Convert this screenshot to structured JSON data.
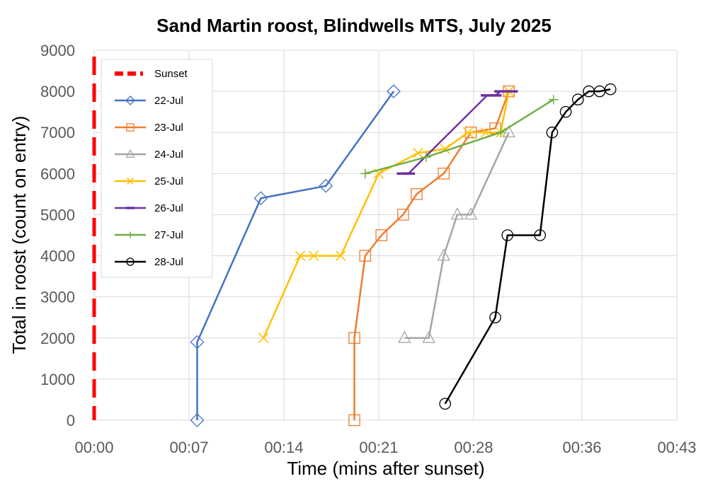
{
  "chart_data": {
    "type": "line",
    "title": "Sand Martin roost, Blindwells MTS, July 2025",
    "xlabel": "Time (mins after sunset)",
    "ylabel": "Total in roost (count on entry)",
    "xlim": [
      0,
      43
    ],
    "ylim": [
      0,
      9000
    ],
    "x_ticks": [
      0,
      7,
      14,
      21,
      28,
      36,
      43
    ],
    "x_tick_labels": [
      "00:00",
      "00:07",
      "00:14",
      "00:21",
      "00:28",
      "00:36",
      "00:43"
    ],
    "y_ticks": [
      0,
      1000,
      2000,
      3000,
      4000,
      5000,
      6000,
      7000,
      8000,
      9000
    ],
    "y_tick_labels": [
      "0",
      "1000",
      "2000",
      "3000",
      "4000",
      "5000",
      "6000",
      "7000",
      "8000",
      "9000"
    ],
    "grid": "major",
    "legend_position": "top-left",
    "sunset": {
      "name": "Sunset",
      "x": 0,
      "color": "#ff0000"
    },
    "series": [
      {
        "name": "22-Jul",
        "color": "#4472c4",
        "marker": "diamond",
        "x": [
          7.6,
          7.6,
          12.3,
          17.1,
          22.1
        ],
        "y": [
          0,
          1900,
          5400,
          5700,
          8000
        ]
      },
      {
        "name": "23-Jul",
        "color": "#ed7d31",
        "marker": "square",
        "x": [
          19.2,
          19.2,
          20.0,
          21.2,
          22.8,
          23.8,
          25.8,
          27.8,
          29.6,
          30.6
        ],
        "y": [
          0,
          2000,
          4000,
          4500,
          5000,
          5500,
          6000,
          7000,
          7100,
          8000
        ]
      },
      {
        "name": "24-Jul",
        "color": "#a5a5a5",
        "marker": "triangle",
        "x": [
          22.9,
          24.7,
          25.8,
          26.8,
          27.8,
          30.6
        ],
        "y": [
          2000,
          2000,
          4000,
          5000,
          5000,
          7000
        ]
      },
      {
        "name": "25-Jul",
        "color": "#ffc000",
        "marker": "cross",
        "x": [
          12.5,
          15.2,
          16.2,
          18.2,
          21.0,
          23.9,
          25.9,
          27.6,
          28.9,
          30.0,
          30.6
        ],
        "y": [
          2000,
          4000,
          4000,
          4000,
          6000,
          6500,
          6600,
          7000,
          7000,
          7000,
          8000
        ]
      },
      {
        "name": "26-Jul",
        "color": "#7030a0",
        "marker": "dash",
        "x": [
          22.8,
          23.2,
          29.0,
          29.6,
          30.0,
          30.8
        ],
        "y": [
          6000,
          6000,
          7900,
          7900,
          8000,
          8000
        ]
      },
      {
        "name": "27-Jul",
        "color": "#70ad47",
        "marker": "plus",
        "x": [
          20.0,
          24.5,
          30.0,
          33.9
        ],
        "y": [
          6000,
          6400,
          7000,
          7800
        ]
      },
      {
        "name": "28-Jul",
        "color": "#000000",
        "marker": "circle",
        "x": [
          25.9,
          29.6,
          30.5,
          32.9,
          33.8,
          34.8,
          35.7,
          36.5,
          37.3,
          38.1
        ],
        "y": [
          400,
          2500,
          4500,
          4500,
          7000,
          7500,
          7800,
          8000,
          8000,
          8050
        ]
      }
    ]
  }
}
